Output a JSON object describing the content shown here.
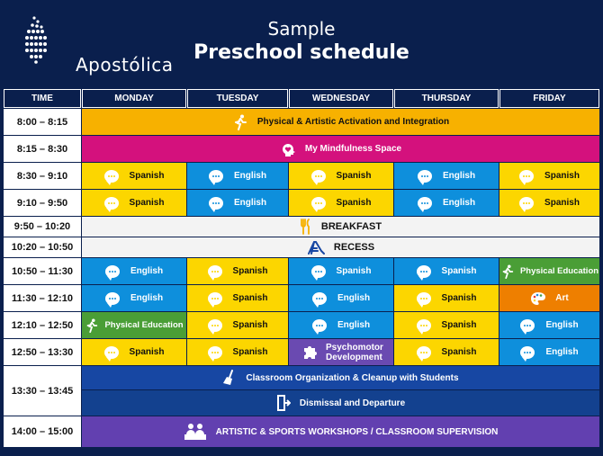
{
  "brand": {
    "name": "Apostólica"
  },
  "title": {
    "line1": "Sample",
    "line2": "Preschool schedule"
  },
  "headers": [
    "TIME",
    "MONDAY",
    "TUESDAY",
    "WEDNESDAY",
    "THURSDAY",
    "FRIDAY"
  ],
  "times": [
    "8:00 – 8:15",
    "8:15 – 8:30",
    "8:30 – 9:10",
    "9:10 – 9:50",
    "9:50 – 10:20",
    "10:20 – 10:50",
    "10:50 – 11:30",
    "11:30 – 12:10",
    "12:10 – 12:50",
    "12:50 – 13:30",
    "13:30 – 13:45",
    "14:00 – 15:00"
  ],
  "full_rows": {
    "activation": "Physical & Artistic Activation and Integration",
    "mindfulness": "My Mindfulness Space",
    "breakfast": "BREAKFAST",
    "recess": "RECESS",
    "cleanup": "Classroom Organization & Cleanup with Students",
    "dismissal": "Dismissal and Departure",
    "workshops": "ARTISTIC & SPORTS WORKSHOPS / CLASSROOM SUPERVISION"
  },
  "cells": {
    "r3": [
      "Spanish",
      "English",
      "Spanish",
      "English",
      "Spanish"
    ],
    "r4": [
      "Spanish",
      "English",
      "Spanish",
      "English",
      "Spanish"
    ],
    "r7": [
      "English",
      "Spanish",
      "Spanish",
      "Spanish",
      "Physical Education"
    ],
    "r8": [
      "English",
      "Spanish",
      "English",
      "Spanish",
      "Art"
    ],
    "r9": [
      "Physical Education",
      "Spanish",
      "English",
      "Spanish",
      "English"
    ],
    "r10": [
      "Spanish",
      "Spanish",
      "Psychomotor Development",
      "Spanish",
      "English"
    ]
  },
  "colors": {
    "yellow": "#fcd600",
    "blue": "#0e8fdc",
    "green": "#4a9e36",
    "orange": "#ee7f00",
    "purple": "#6a4ab1",
    "magenta": "#d4117d",
    "gold": "#f7b100",
    "navy": "#1747a3",
    "background": "#0a1f4d"
  },
  "icons": {
    "activation": "running-person-icon",
    "mindfulness": "head-heart-icon",
    "breakfast": "fork-knife-icon",
    "recess": "playground-slide-icon",
    "cleanup": "broom-icon",
    "dismissal": "exit-door-icon",
    "workshops": "students-desk-icon",
    "language": "speech-bubble-icon",
    "pe": "running-person-icon",
    "art": "palette-icon",
    "psychomotor": "puzzle-icon"
  }
}
